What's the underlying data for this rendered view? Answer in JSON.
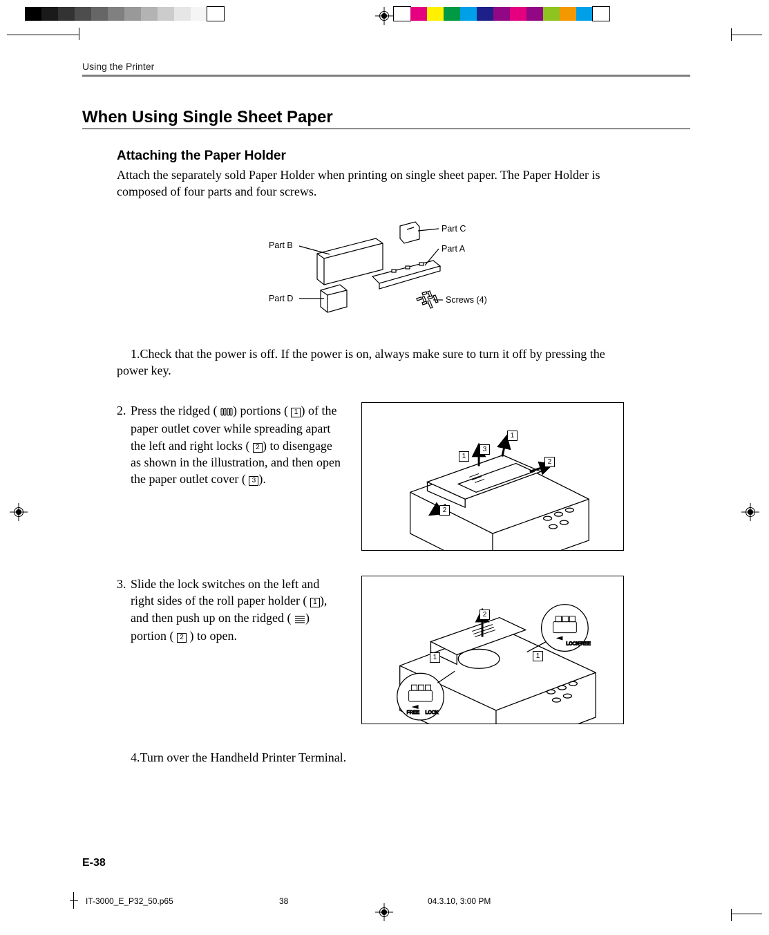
{
  "print_marks": {
    "grey_swatches": [
      "#000000",
      "#1a1a1a",
      "#333333",
      "#4d4d4d",
      "#666666",
      "#808080",
      "#999999",
      "#b3b3b3",
      "#cccccc",
      "#e6e6e6",
      "#f5f5f5",
      "#ffffff"
    ],
    "color_swatches": [
      "#ffffff",
      "#e4007f",
      "#fff100",
      "#009944",
      "#00a0e9",
      "#1d2088",
      "#920783",
      "#e4007f",
      "#920783",
      "#8fc31f",
      "#f39800",
      "#00a0e9",
      "#ffffff"
    ]
  },
  "header": {
    "running_head": "Using the Printer"
  },
  "section": {
    "title": "When Using Single Sheet Paper"
  },
  "subsection": {
    "title": "Attaching the Paper Holder",
    "intro": "Attach the separately sold Paper Holder when printing on single sheet paper.  The Paper Holder is composed of four parts and four screws."
  },
  "parts_diagram": {
    "labels": {
      "a": "Part A",
      "b": "Part B",
      "c": "Part C",
      "d": "Part D",
      "screws": "Screws (4)"
    }
  },
  "steps": {
    "s1": {
      "n": "1.",
      "text": "Check that the power is off.  If the power is on, always make sure to turn it off by pressing the power key."
    },
    "s2": {
      "n": "2.",
      "t1": "Press the ridged (",
      "t2": ") portions (",
      "t3": ") of the paper outlet cover while spreading apart the left and right locks (",
      "t4": ") to disengage as shown in the illustration, and then open the paper outlet cover (",
      "t5": ").",
      "box1": "1",
      "box2": "2",
      "box3": "3"
    },
    "s3": {
      "n": "3.",
      "t1": "Slide the lock switches on the left and right sides of the roll paper holder (",
      "t2": "), and then push up on the ridged (",
      "t3": ") portion (",
      "t4": ") to open.",
      "box1": "1",
      "box2": "2"
    },
    "s4": {
      "n": "4.",
      "text": "Turn over the Handheld Printer Terminal."
    }
  },
  "fig2": {
    "c1": "1",
    "c2": "2",
    "c3": "3",
    "c2b": "2",
    "c1b": "1"
  },
  "fig3": {
    "c1": "1",
    "c2": "2",
    "c1b": "1"
  },
  "page_num": "E-38",
  "slug": {
    "file": "IT-3000_E_P32_50.p65",
    "page": "38",
    "stamp": "04.3.10, 3:00 PM"
  }
}
